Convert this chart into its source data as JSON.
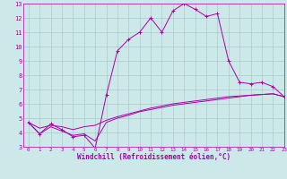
{
  "title": "",
  "xlabel": "Windchill (Refroidissement éolien,°C)",
  "bg_color": "#cce8e8",
  "grid_color": "#aacccc",
  "line_color": "#aa00aa",
  "x_hours": [
    0,
    1,
    2,
    3,
    4,
    5,
    6,
    7,
    8,
    9,
    10,
    11,
    12,
    13,
    14,
    15,
    16,
    17,
    18,
    19,
    20,
    21,
    22,
    23
  ],
  "line1_y": [
    4.7,
    3.9,
    4.6,
    4.2,
    3.7,
    3.8,
    2.9,
    6.6,
    9.7,
    10.5,
    11.0,
    12.0,
    11.0,
    12.5,
    13.0,
    12.6,
    12.1,
    12.3,
    9.0,
    7.5,
    7.4,
    7.5,
    7.2,
    6.5
  ],
  "line2_y": [
    4.7,
    3.9,
    4.4,
    4.1,
    3.8,
    3.9,
    3.4,
    4.7,
    5.0,
    5.2,
    5.45,
    5.6,
    5.75,
    5.9,
    6.0,
    6.1,
    6.2,
    6.3,
    6.4,
    6.5,
    6.6,
    6.65,
    6.7,
    6.5
  ],
  "line3_y": [
    4.7,
    4.3,
    4.5,
    4.4,
    4.2,
    4.4,
    4.5,
    4.85,
    5.1,
    5.3,
    5.5,
    5.7,
    5.85,
    6.0,
    6.1,
    6.2,
    6.3,
    6.4,
    6.5,
    6.55,
    6.6,
    6.65,
    6.7,
    6.5
  ],
  "xlim": [
    -0.5,
    23
  ],
  "ylim": [
    3,
    13
  ],
  "xtick_fontsize": 4.2,
  "ytick_fontsize": 5.0,
  "xlabel_fontsize": 5.5
}
